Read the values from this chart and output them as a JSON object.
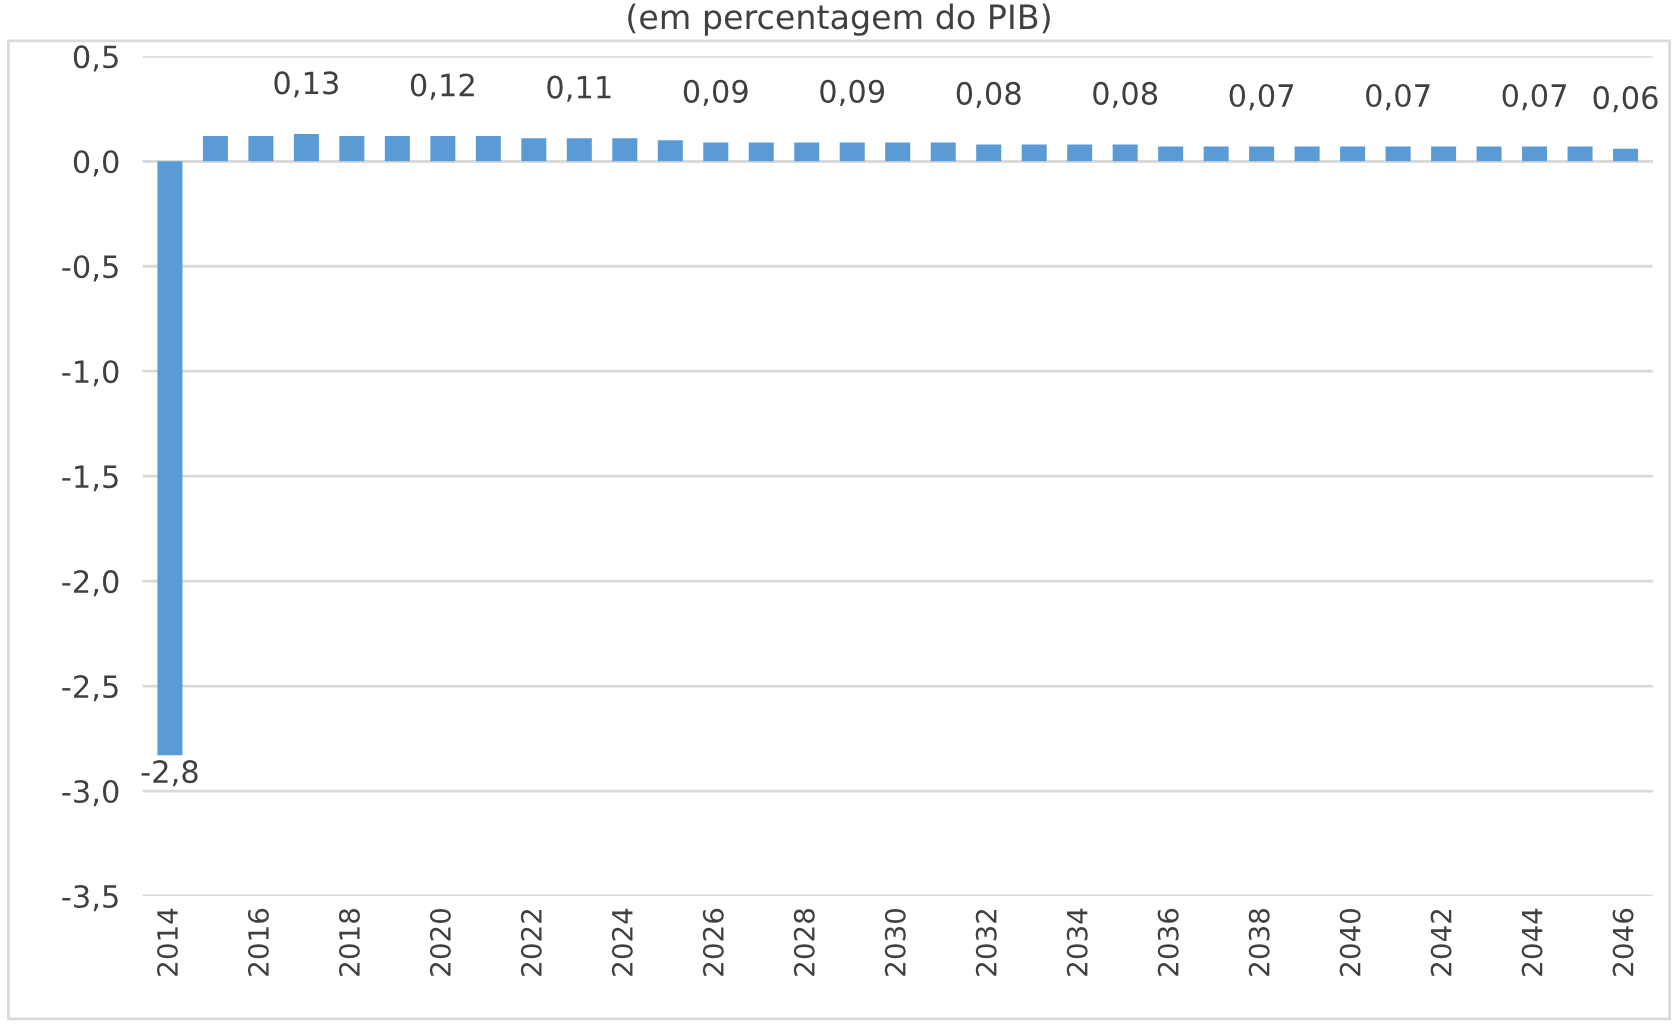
{
  "chart_data": {
    "type": "bar",
    "title": "(em percentagem do PIB)",
    "categories": [
      "2014",
      null,
      "2016",
      null,
      "2018",
      null,
      "2020",
      null,
      "2022",
      null,
      "2024",
      null,
      "2026",
      null,
      "2028",
      null,
      "2030",
      null,
      "2032",
      null,
      "2034",
      null,
      "2036",
      null,
      "2038",
      null,
      "2040",
      null,
      "2042",
      null,
      "2044",
      null,
      "2046"
    ],
    "values": [
      -2.83,
      0.12,
      0.12,
      0.13,
      0.12,
      0.12,
      0.12,
      0.12,
      0.11,
      0.11,
      0.11,
      0.1,
      0.09,
      0.09,
      0.09,
      0.09,
      0.09,
      0.09,
      0.08,
      0.08,
      0.08,
      0.08,
      0.07,
      0.07,
      0.07,
      0.07,
      0.07,
      0.07,
      0.07,
      0.07,
      0.07,
      0.07,
      0.06
    ],
    "value_labels": [
      "-2,8",
      null,
      null,
      "0,13",
      null,
      null,
      "0,12",
      null,
      null,
      "0,11",
      null,
      null,
      "0,09",
      null,
      null,
      "0,09",
      null,
      null,
      "0,08",
      null,
      null,
      "0,08",
      null,
      null,
      "0,07",
      null,
      null,
      "0,07",
      null,
      null,
      "0,07",
      null,
      "0,06"
    ],
    "color": "#5b9bd5",
    "ylim": [
      -3.5,
      0.5
    ],
    "yticks": [
      {
        "value": -3.5,
        "label": "-3,5"
      },
      {
        "value": -3.0,
        "label": "-3,0"
      },
      {
        "value": -2.5,
        "label": "-2,5"
      },
      {
        "value": -2.0,
        "label": "-2,0"
      },
      {
        "value": -1.5,
        "label": "-1,5"
      },
      {
        "value": -1.0,
        "label": "-1,0"
      },
      {
        "value": -0.5,
        "label": "-0,5"
      },
      {
        "value": 0.0,
        "label": "0,0"
      },
      {
        "value": 0.5,
        "label": "0,5"
      }
    ],
    "grid": "y"
  }
}
